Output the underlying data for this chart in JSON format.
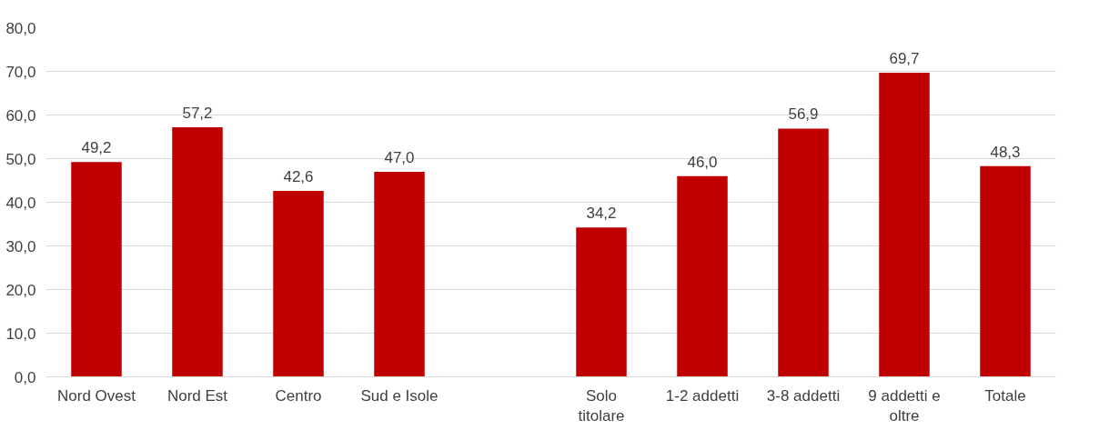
{
  "chart_data": {
    "type": "bar",
    "categories": [
      "Nord Ovest",
      "Nord Est",
      "Centro",
      "Sud e Isole",
      null,
      "Solo titolare",
      "1-2 addetti",
      "3-8 addetti",
      "9 addetti e oltre",
      "Totale"
    ],
    "values": [
      49.2,
      57.2,
      42.6,
      47.0,
      null,
      34.2,
      46.0,
      56.9,
      69.7,
      48.3
    ],
    "value_labels": [
      "49,2",
      "57,2",
      "42,6",
      "47,0",
      null,
      "34,2",
      "46,0",
      "56,9",
      "69,7",
      "48,3"
    ],
    "color": "#c00000",
    "ylim": [
      0,
      80
    ],
    "yticks": [
      {
        "value": 0,
        "label": "0,0"
      },
      {
        "value": 10,
        "label": "10,0"
      },
      {
        "value": 20,
        "label": "20,0"
      },
      {
        "value": 30,
        "label": "30,0"
      },
      {
        "value": 40,
        "label": "40,0"
      },
      {
        "value": 50,
        "label": "50,0"
      },
      {
        "value": 60,
        "label": "60,0"
      },
      {
        "value": 70,
        "label": "70,0"
      },
      {
        "value": 80,
        "label": "80,0"
      }
    ],
    "grid": "y"
  }
}
